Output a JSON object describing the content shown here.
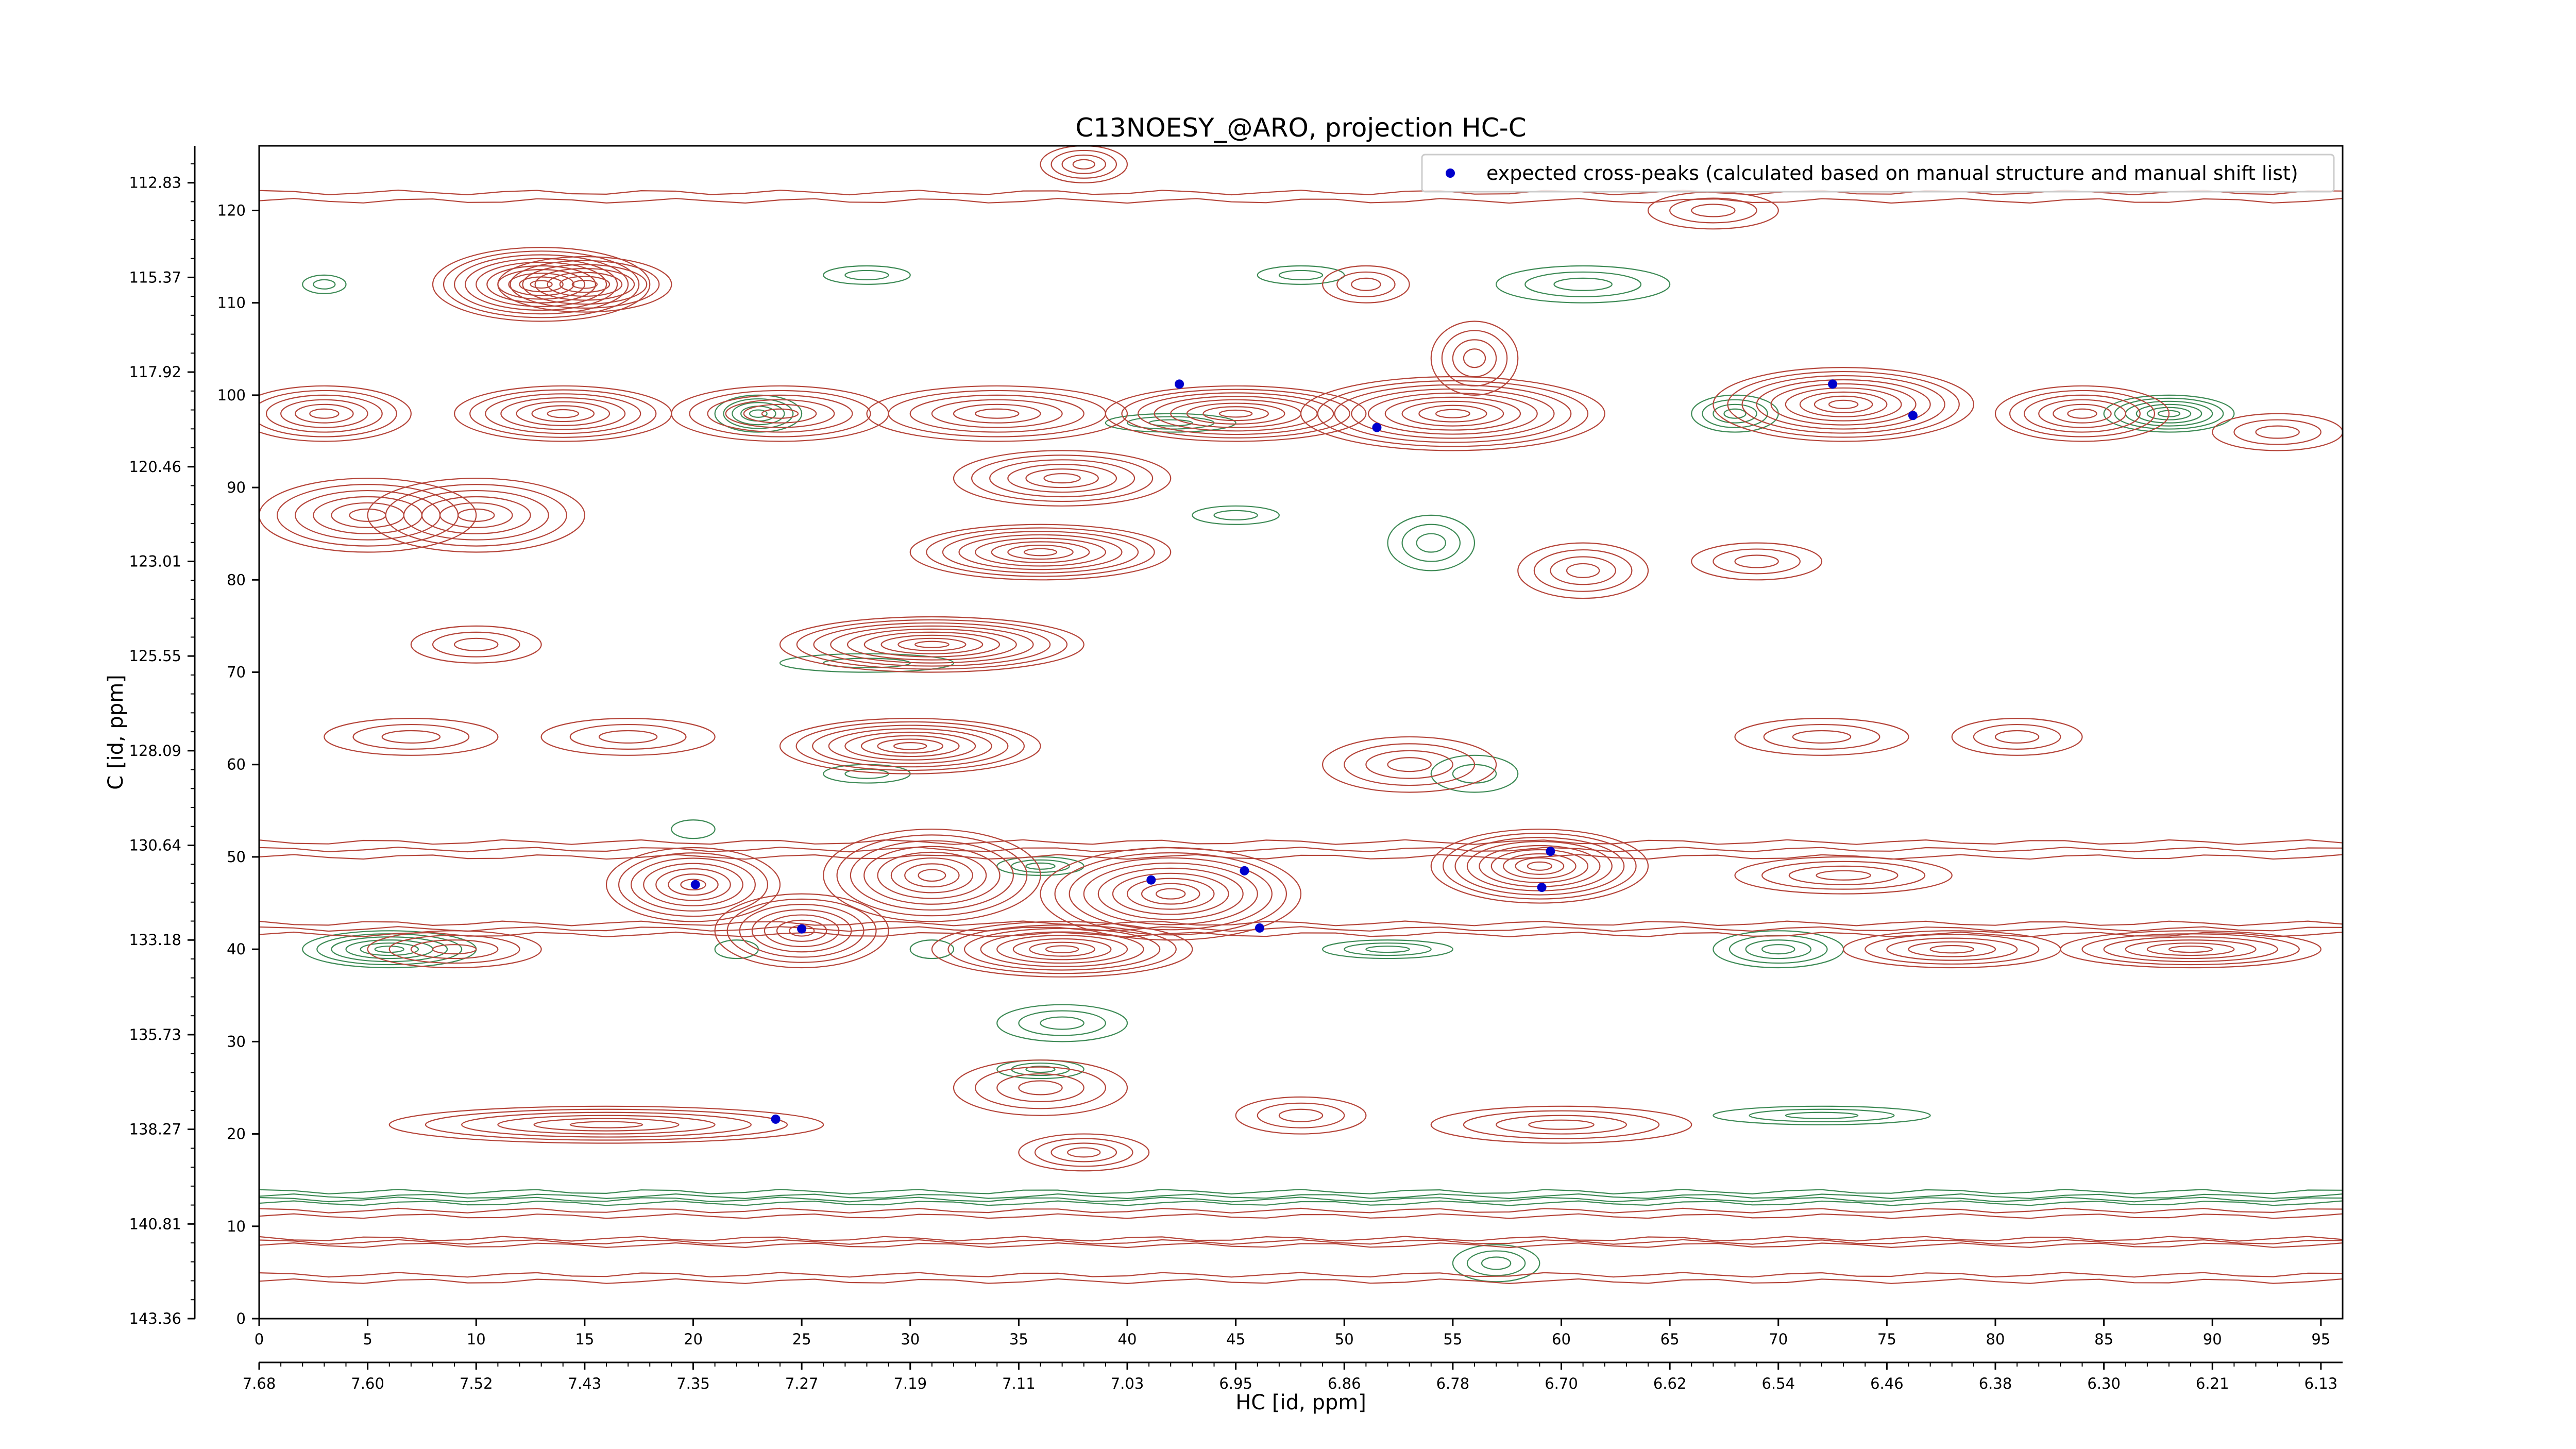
{
  "chart_data": {
    "type": "contour",
    "title": "C13NOESY_@ARO, projection HC-C",
    "xlabel": "HC [id, ppm]",
    "ylabel": "C [id, ppm]",
    "xlim": [
      0,
      96
    ],
    "ylim": [
      0,
      127
    ],
    "x_ticks": [
      "0",
      "5",
      "10",
      "15",
      "20",
      "25",
      "30",
      "35",
      "40",
      "45",
      "50",
      "55",
      "60",
      "65",
      "70",
      "75",
      "80",
      "85",
      "90",
      "95"
    ],
    "y_ticks": [
      "0",
      "10",
      "20",
      "30",
      "40",
      "50",
      "60",
      "70",
      "80",
      "90",
      "100",
      "110",
      "120"
    ],
    "x_ppm_ticks": [
      "7.68",
      "7.60",
      "7.52",
      "7.43",
      "7.35",
      "7.27",
      "7.19",
      "7.11",
      "7.03",
      "6.95",
      "6.86",
      "6.78",
      "6.70",
      "6.62",
      "6.54",
      "6.46",
      "6.38",
      "6.30",
      "6.21",
      "6.13"
    ],
    "y_ppm_ticks": [
      "143.36",
      "140.81",
      "138.27",
      "135.73",
      "133.18",
      "130.64",
      "128.09",
      "125.55",
      "123.01",
      "120.46",
      "117.92",
      "115.37",
      "112.83"
    ],
    "legend": {
      "position": "upper-right",
      "entries": [
        {
          "label": "expected cross-peaks (calculated based on manual structure and manual shift list)",
          "marker": "circle",
          "color": "#0000cc"
        }
      ]
    },
    "colors": {
      "positive": "#b5453a",
      "negative": "#3d8a55",
      "peaks": "#0000cc"
    },
    "expected_peaks": [
      {
        "x": 20.1,
        "y": 47.0
      },
      {
        "x": 25.0,
        "y": 42.2
      },
      {
        "x": 23.8,
        "y": 21.6
      },
      {
        "x": 41.1,
        "y": 47.5
      },
      {
        "x": 42.4,
        "y": 101.2
      },
      {
        "x": 45.4,
        "y": 48.5
      },
      {
        "x": 46.1,
        "y": 42.3
      },
      {
        "x": 51.5,
        "y": 96.5
      },
      {
        "x": 59.1,
        "y": 46.7
      },
      {
        "x": 59.5,
        "y": 50.6
      },
      {
        "x": 72.5,
        "y": 101.2
      },
      {
        "x": 76.2,
        "y": 97.8
      }
    ],
    "positive_peaks": [
      {
        "x": 13,
        "y": 112,
        "a": 5,
        "b": 4,
        "n": 10
      },
      {
        "x": 15,
        "y": 112,
        "a": 4,
        "b": 3,
        "n": 7
      },
      {
        "x": 3,
        "y": 98,
        "a": 4,
        "b": 3,
        "n": 6
      },
      {
        "x": 14,
        "y": 98,
        "a": 5,
        "b": 3,
        "n": 7
      },
      {
        "x": 24,
        "y": 98,
        "a": 5,
        "b": 3,
        "n": 6
      },
      {
        "x": 34,
        "y": 98,
        "a": 6,
        "b": 3,
        "n": 6
      },
      {
        "x": 45,
        "y": 98,
        "a": 6,
        "b": 3,
        "n": 8
      },
      {
        "x": 55,
        "y": 98,
        "a": 7,
        "b": 4,
        "n": 9
      },
      {
        "x": 73,
        "y": 99,
        "a": 6,
        "b": 4,
        "n": 9
      },
      {
        "x": 84,
        "y": 98,
        "a": 4,
        "b": 3,
        "n": 6
      },
      {
        "x": 5,
        "y": 87,
        "a": 5,
        "b": 4,
        "n": 6
      },
      {
        "x": 10,
        "y": 87,
        "a": 5,
        "b": 4,
        "n": 6
      },
      {
        "x": 36,
        "y": 83,
        "a": 6,
        "b": 3,
        "n": 8
      },
      {
        "x": 37,
        "y": 91,
        "a": 5,
        "b": 3,
        "n": 6
      },
      {
        "x": 31,
        "y": 73,
        "a": 7,
        "b": 3,
        "n": 9
      },
      {
        "x": 30,
        "y": 62,
        "a": 6,
        "b": 3,
        "n": 8
      },
      {
        "x": 20,
        "y": 47,
        "a": 4,
        "b": 4,
        "n": 7
      },
      {
        "x": 25,
        "y": 42,
        "a": 4,
        "b": 4,
        "n": 7
      },
      {
        "x": 31,
        "y": 48,
        "a": 5,
        "b": 5,
        "n": 8
      },
      {
        "x": 42,
        "y": 46,
        "a": 6,
        "b": 5,
        "n": 9
      },
      {
        "x": 37,
        "y": 40,
        "a": 6,
        "b": 3,
        "n": 8
      },
      {
        "x": 59,
        "y": 49,
        "a": 5,
        "b": 4,
        "n": 9
      },
      {
        "x": 9,
        "y": 40,
        "a": 4,
        "b": 2,
        "n": 4
      },
      {
        "x": 78,
        "y": 40,
        "a": 5,
        "b": 2,
        "n": 5
      },
      {
        "x": 89,
        "y": 40,
        "a": 6,
        "b": 2,
        "n": 6
      },
      {
        "x": 73,
        "y": 48,
        "a": 5,
        "b": 2,
        "n": 4
      },
      {
        "x": 16,
        "y": 21,
        "a": 10,
        "b": 2,
        "n": 6
      },
      {
        "x": 38,
        "y": 18,
        "a": 3,
        "b": 2,
        "n": 4
      },
      {
        "x": 61,
        "y": 81,
        "a": 3,
        "b": 3,
        "n": 4
      },
      {
        "x": 72,
        "y": 63,
        "a": 4,
        "b": 2,
        "n": 3
      },
      {
        "x": 81,
        "y": 63,
        "a": 3,
        "b": 2,
        "n": 3
      },
      {
        "x": 10,
        "y": 73,
        "a": 3,
        "b": 2,
        "n": 3
      },
      {
        "x": 69,
        "y": 82,
        "a": 3,
        "b": 2,
        "n": 3
      },
      {
        "x": 38,
        "y": 125,
        "a": 2,
        "b": 2,
        "n": 4
      },
      {
        "x": 7,
        "y": 63,
        "a": 4,
        "b": 2,
        "n": 3
      },
      {
        "x": 17,
        "y": 63,
        "a": 4,
        "b": 2,
        "n": 3
      },
      {
        "x": 53,
        "y": 60,
        "a": 4,
        "b": 3,
        "n": 4
      },
      {
        "x": 48,
        "y": 22,
        "a": 3,
        "b": 2,
        "n": 3
      },
      {
        "x": 67,
        "y": 120,
        "a": 3,
        "b": 2,
        "n": 3
      },
      {
        "x": 56,
        "y": 104,
        "a": 2,
        "b": 4,
        "n": 4
      },
      {
        "x": 36,
        "y": 25,
        "a": 4,
        "b": 3,
        "n": 4
      },
      {
        "x": 60,
        "y": 21,
        "a": 6,
        "b": 2,
        "n": 4
      },
      {
        "x": 51,
        "y": 112,
        "a": 2,
        "b": 2,
        "n": 3
      },
      {
        "x": 93,
        "y": 96,
        "a": 3,
        "b": 2,
        "n": 3
      }
    ],
    "negative_peaks": [
      {
        "x": 23,
        "y": 98,
        "a": 2,
        "b": 2,
        "n": 5
      },
      {
        "x": 88,
        "y": 98,
        "a": 3,
        "b": 2,
        "n": 6
      },
      {
        "x": 68,
        "y": 98,
        "a": 2,
        "b": 2,
        "n": 4
      },
      {
        "x": 42,
        "y": 97,
        "a": 3,
        "b": 1,
        "n": 3
      },
      {
        "x": 6,
        "y": 40,
        "a": 4,
        "b": 2,
        "n": 6
      },
      {
        "x": 70,
        "y": 40,
        "a": 3,
        "b": 2,
        "n": 4
      },
      {
        "x": 52,
        "y": 40,
        "a": 3,
        "b": 1,
        "n": 3
      },
      {
        "x": 36,
        "y": 49,
        "a": 2,
        "b": 1,
        "n": 3
      },
      {
        "x": 37,
        "y": 32,
        "a": 3,
        "b": 2,
        "n": 3
      },
      {
        "x": 36,
        "y": 27,
        "a": 2,
        "b": 1,
        "n": 3
      },
      {
        "x": 3,
        "y": 112,
        "a": 1,
        "b": 1,
        "n": 2
      },
      {
        "x": 28,
        "y": 113,
        "a": 2,
        "b": 1,
        "n": 2
      },
      {
        "x": 48,
        "y": 113,
        "a": 2,
        "b": 1,
        "n": 2
      },
      {
        "x": 61,
        "y": 112,
        "a": 4,
        "b": 2,
        "n": 3
      },
      {
        "x": 54,
        "y": 84,
        "a": 2,
        "b": 3,
        "n": 3
      },
      {
        "x": 45,
        "y": 87,
        "a": 2,
        "b": 1,
        "n": 2
      },
      {
        "x": 72,
        "y": 22,
        "a": 5,
        "b": 1,
        "n": 3
      },
      {
        "x": 57,
        "y": 6,
        "a": 2,
        "b": 2,
        "n": 3
      },
      {
        "x": 28,
        "y": 71,
        "a": 4,
        "b": 1,
        "n": 2
      },
      {
        "x": 56,
        "y": 59,
        "a": 2,
        "b": 2,
        "n": 2
      },
      {
        "x": 31,
        "y": 40,
        "a": 1,
        "b": 1,
        "n": 1
      },
      {
        "x": 22,
        "y": 40,
        "a": 1,
        "b": 1,
        "n": 1
      },
      {
        "x": 28,
        "y": 59,
        "a": 2,
        "b": 1,
        "n": 2
      },
      {
        "x": 20,
        "y": 53,
        "a": 1,
        "b": 1,
        "n": 1
      }
    ],
    "positive_bands": [
      {
        "x0": 0,
        "x1": 96,
        "y": 121.5,
        "h": 0.9,
        "n": 2
      },
      {
        "x0": 0,
        "x1": 96,
        "y": 11.4,
        "h": 0.6,
        "n": 2
      },
      {
        "x0": 0,
        "x1": 96,
        "y": 8.3,
        "h": 0.7,
        "n": 3
      },
      {
        "x0": 0,
        "x1": 96,
        "y": 4.4,
        "h": 0.7,
        "n": 2
      },
      {
        "x0": 0,
        "x1": 96,
        "y": 50.8,
        "h": 1.6,
        "n": 3
      },
      {
        "x0": 0,
        "x1": 96,
        "y": 42.2,
        "h": 1.2,
        "n": 3
      }
    ],
    "negative_bands": [
      {
        "x0": 0,
        "x1": 96,
        "y": 13.5,
        "h": 0.5,
        "n": 2
      },
      {
        "x0": 0,
        "x1": 96,
        "y": 12.7,
        "h": 0.4,
        "n": 2
      }
    ]
  }
}
